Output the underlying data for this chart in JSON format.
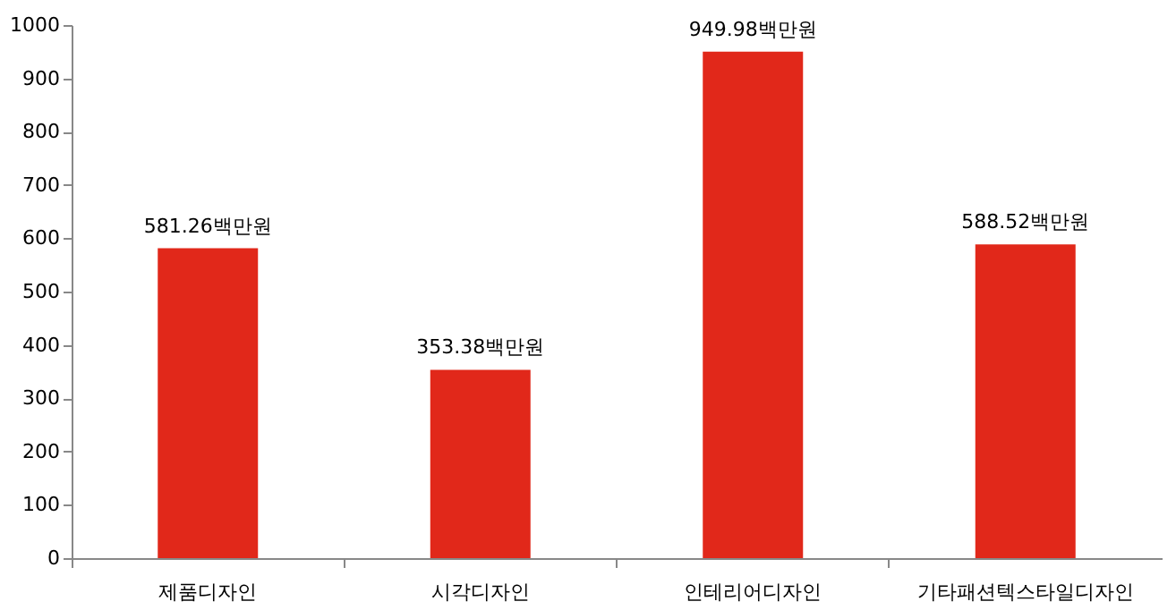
{
  "chart_data": {
    "type": "bar",
    "categories": [
      "제품디자인",
      "시각디자인",
      "인테리어디자인",
      "기타패션텍스타일디자인"
    ],
    "values": [
      581.26,
      353.38,
      949.98,
      588.52
    ],
    "value_labels": [
      "581.26백만원",
      "353.38백만원",
      "949.98백만원",
      "588.52백만원"
    ],
    "color": "#e1281a",
    "ylim": [
      0,
      1000
    ],
    "yticks": [
      0,
      100,
      200,
      300,
      400,
      500,
      600,
      700,
      800,
      900,
      1000
    ],
    "grid": false
  }
}
